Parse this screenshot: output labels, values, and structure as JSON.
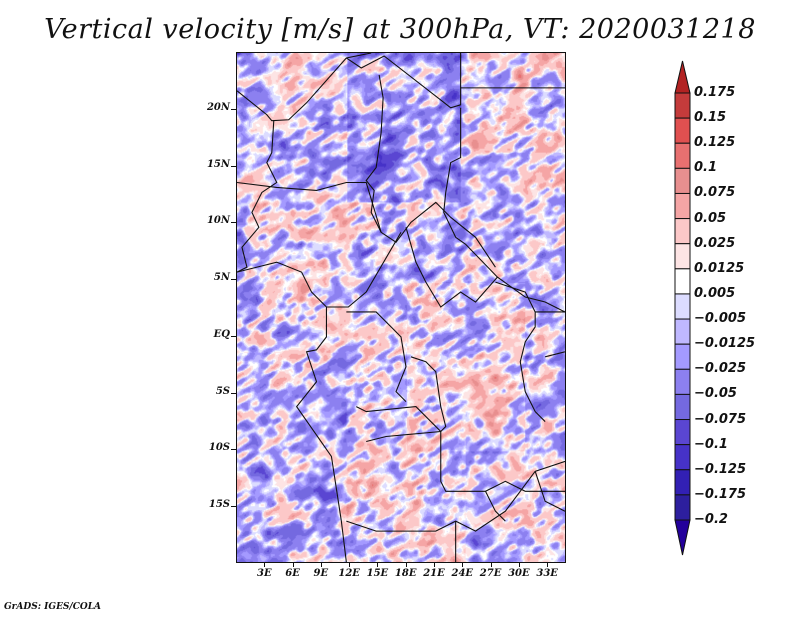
{
  "title": "Vertical velocity [m/s] at 300hPa, VT: 2020031218",
  "footer": "GrADS: IGES/COLA",
  "map": {
    "variable": "Vertical velocity",
    "units": "m/s",
    "level": "300hPa",
    "valid_time": "2020031218",
    "lon_range": [
      0,
      35
    ],
    "lat_range": [
      -20,
      25
    ],
    "y_ticks": [
      {
        "label": "20N",
        "lat": 20
      },
      {
        "label": "15N",
        "lat": 15
      },
      {
        "label": "10N",
        "lat": 10
      },
      {
        "label": "5N",
        "lat": 5
      },
      {
        "label": "EQ",
        "lat": 0
      },
      {
        "label": "5S",
        "lat": -5
      },
      {
        "label": "10S",
        "lat": -10
      },
      {
        "label": "15S",
        "lat": -15
      }
    ],
    "x_ticks": [
      {
        "label": "3E",
        "lon": 3
      },
      {
        "label": "6E",
        "lon": 6
      },
      {
        "label": "9E",
        "lon": 9
      },
      {
        "label": "12E",
        "lon": 12
      },
      {
        "label": "15E",
        "lon": 15
      },
      {
        "label": "18E",
        "lon": 18
      },
      {
        "label": "21E",
        "lon": 21
      },
      {
        "label": "24E",
        "lon": 24
      },
      {
        "label": "27E",
        "lon": 27
      },
      {
        "label": "30E",
        "lon": 30
      },
      {
        "label": "33E",
        "lon": 33
      }
    ]
  },
  "colorbar": {
    "levels": [
      "0.175",
      "0.15",
      "0.125",
      "0.1",
      "0.075",
      "0.05",
      "0.025",
      "0.0125",
      "0.005",
      "-0.005",
      "-0.0125",
      "-0.025",
      "-0.05",
      "-0.075",
      "-0.1",
      "-0.125",
      "-0.175",
      "-0.2"
    ],
    "colors": [
      "#b22222",
      "#c43b3b",
      "#e05050",
      "#e87070",
      "#e88f8f",
      "#f5a5a5",
      "#fcc8c8",
      "#fde4e4",
      "#ffffff",
      "#dcdcff",
      "#bfb8ff",
      "#a49aff",
      "#8c80f0",
      "#7469e0",
      "#5a46d2",
      "#4632c8",
      "#3220b4",
      "#2d1f9e",
      "#23009b"
    ],
    "top_arrow_color": "#b22222",
    "bottom_arrow_color": "#23009b"
  }
}
